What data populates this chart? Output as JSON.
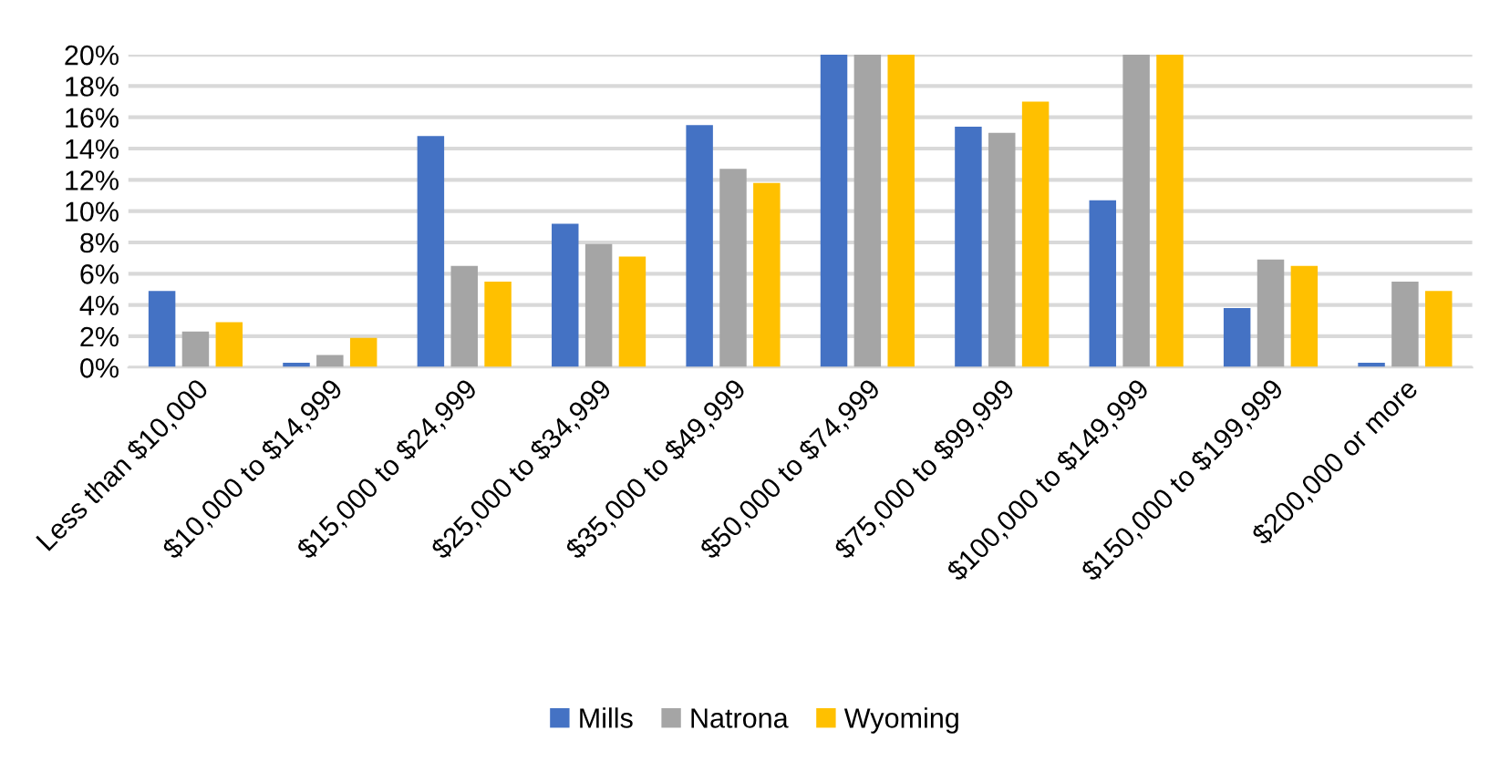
{
  "chart_data": {
    "type": "bar",
    "categories": [
      "Less than $10,000",
      "$10,000 to $14,999",
      "$15,000 to $24,999",
      "$25,000 to $34,999",
      "$35,000 to $49,999",
      "$50,000 to $74,999",
      "$75,000 to $99,999",
      "$100,000 to $149,999",
      "$150,000 to $199,999",
      "$200,000 or more"
    ],
    "series": [
      {
        "name": "Mills",
        "color": "#4472c4",
        "values": [
          4.9,
          0.3,
          14.8,
          9.2,
          15.5,
          20,
          15.4,
          10.7,
          3.8,
          0.3
        ]
      },
      {
        "name": "Natrona",
        "color": "#a5a5a5",
        "values": [
          2.3,
          0.8,
          6.5,
          7.9,
          12.7,
          20,
          15.0,
          20,
          6.9,
          5.5
        ]
      },
      {
        "name": "Wyoming",
        "color": "#ffc000",
        "values": [
          2.9,
          1.9,
          5.5,
          7.1,
          11.8,
          20,
          17.0,
          20,
          6.5,
          4.9
        ]
      }
    ],
    "ylim": [
      0,
      20
    ],
    "yticks": [
      {
        "value": 0,
        "label": "0%"
      },
      {
        "value": 2,
        "label": "2%"
      },
      {
        "value": 4,
        "label": "4%"
      },
      {
        "value": 6,
        "label": "6%"
      },
      {
        "value": 8,
        "label": "8%"
      },
      {
        "value": 10,
        "label": "10%"
      },
      {
        "value": 12,
        "label": "12%"
      },
      {
        "value": 14,
        "label": "14%"
      },
      {
        "value": 16,
        "label": "16%"
      },
      {
        "value": 18,
        "label": "18%"
      },
      {
        "value": 20,
        "label": "20%"
      }
    ],
    "grid": "y",
    "legend": "bottom"
  }
}
